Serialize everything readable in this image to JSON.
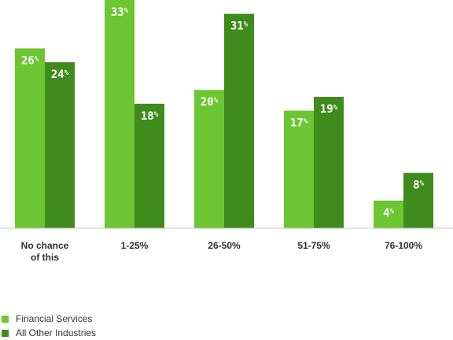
{
  "chart_data": {
    "type": "bar",
    "categories": [
      [
        "No chance",
        "of this"
      ],
      [
        "1-25%"
      ],
      [
        "26-50%"
      ],
      [
        "51-75%"
      ],
      [
        "76-100%"
      ]
    ],
    "series": [
      {
        "name": "Financial Services",
        "values": [
          26,
          33,
          20,
          17,
          4
        ],
        "color": "#6cc531"
      },
      {
        "name": "All Other Industries",
        "values": [
          24,
          18,
          31,
          19,
          8
        ],
        "color": "#3f8c1c"
      }
    ],
    "value_suffix": "%",
    "ylim": [
      0,
      33
    ],
    "legend_position": "bottom-left",
    "grid": false
  },
  "legend": {
    "items": [
      {
        "label": "Financial Services",
        "color": "#6cc531"
      },
      {
        "label": "All Other Industries",
        "color": "#3f8c1c"
      }
    ]
  }
}
